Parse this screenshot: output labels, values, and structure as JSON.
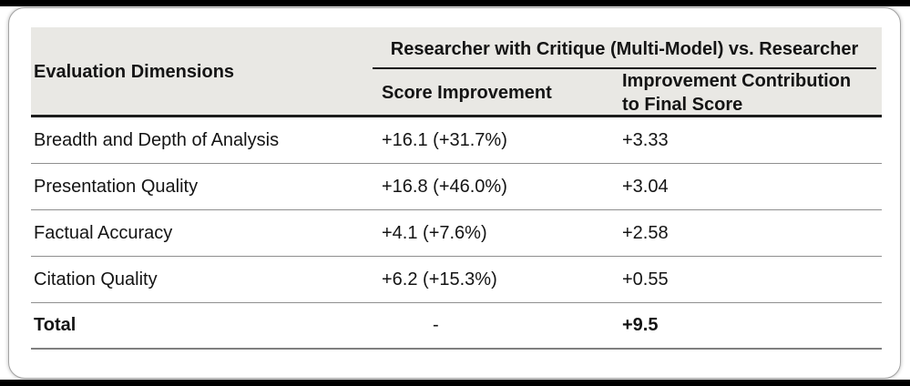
{
  "page": {
    "letterbox_color": "#000000",
    "card_background": "#ffffff",
    "card_border_color": "#a3a3a3"
  },
  "table": {
    "dimension_column_header": "Evaluation Dimensions",
    "group_header": "Researcher with Critique (Multi-Model) vs. Researcher",
    "sub_headers": {
      "score_improvement": "Score Improvement",
      "improvement_contribution": "Improvement Contribution to Final Score"
    },
    "rows": [
      {
        "dimension": "Breadth and Depth of Analysis",
        "score_improvement": "+16.1 (+31.7%)",
        "contribution": "+3.33"
      },
      {
        "dimension": "Presentation Quality",
        "score_improvement": "+16.8 (+46.0%)",
        "contribution": "+3.04"
      },
      {
        "dimension": "Factual Accuracy",
        "score_improvement": "+4.1 (+7.6%)",
        "contribution": "+2.58"
      },
      {
        "dimension": "Citation Quality",
        "score_improvement": "+6.2 (+15.3%)",
        "contribution": "+0.55"
      },
      {
        "dimension": "Total",
        "score_improvement": "-",
        "contribution": "+9.5"
      }
    ],
    "colors": {
      "header_background": "#e9e8e4",
      "text": "#141414",
      "row_divider": "#8f8f8f",
      "header_bottom_rule": "#1c1c1c",
      "group_header_underline": "#141414",
      "total_bottom_rule": "#7f7f7f"
    }
  }
}
